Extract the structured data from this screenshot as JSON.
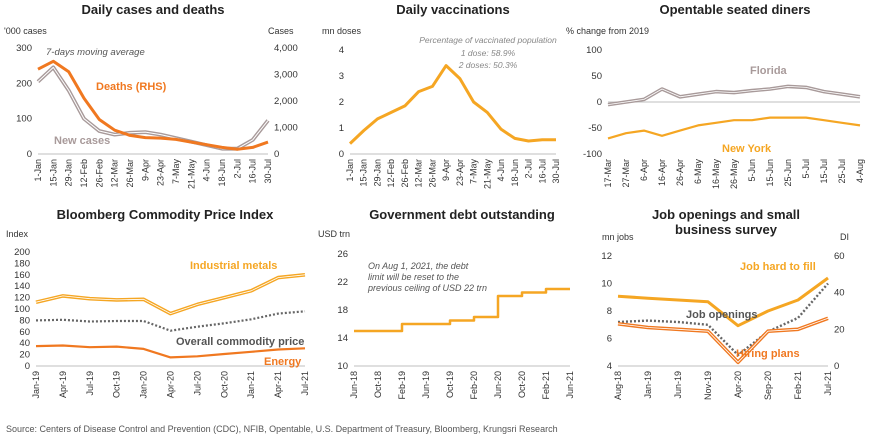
{
  "source": "Source: Centers of Disease Control and Prevention (CDC), NFIB, Opentable, U.S. Department of Treasury, Bloomberg, Krungsri Research",
  "colors": {
    "orange": "#F07820",
    "gray": "#A89A9A",
    "darkgray": "#666666",
    "gold": "#F5A623",
    "axis": "#BFBFBF",
    "text": "#333333"
  },
  "chart_data": [
    {
      "id": "cases",
      "type": "line",
      "title": "Daily cases and deaths",
      "ylabel": "'000 cases",
      "y2label": "Cases",
      "ylim": [
        0,
        300
      ],
      "y2lim": [
        0,
        4000
      ],
      "yticks": [
        "0",
        "100",
        "200",
        "300"
      ],
      "y2ticks": [
        "0",
        "1,000",
        "2,000",
        "3,000",
        "4,000"
      ],
      "categories": [
        "1-Jan",
        "15-Jan",
        "29-Jan",
        "12-Feb",
        "26-Feb",
        "12-Mar",
        "26-Mar",
        "9-Apr",
        "23-Apr",
        "7-May",
        "21-May",
        "4-Jun",
        "18-Jun",
        "2-Jul",
        "16-Jul",
        "30-Jul"
      ],
      "annotations": [
        "7-days moving average",
        "Deaths (RHS)",
        "New cases"
      ],
      "series": [
        {
          "name": "New cases",
          "axis": "left",
          "values": [
            205,
            245,
            180,
            100,
            65,
            55,
            60,
            62,
            55,
            45,
            35,
            25,
            15,
            15,
            40,
            95
          ]
        },
        {
          "name": "Deaths (RHS)",
          "axis": "right",
          "values": [
            3200,
            3500,
            3100,
            2100,
            1300,
            900,
            700,
            620,
            600,
            550,
            450,
            350,
            250,
            180,
            250,
            450
          ]
        }
      ]
    },
    {
      "id": "vacc",
      "type": "line",
      "title": "Daily vaccinations",
      "ylabel": "mn doses",
      "ylim": [
        0,
        4
      ],
      "yticks": [
        "0",
        "1",
        "2",
        "3",
        "4"
      ],
      "categories": [
        "1-Jan",
        "15-Jan",
        "29-Jan",
        "12-Feb",
        "26-Feb",
        "12-Mar",
        "26-Mar",
        "9-Apr",
        "23-Apr",
        "7-May",
        "21-May",
        "4-Jun",
        "18-Jun",
        "2-Jul",
        "16-Jul",
        "30-Jul"
      ],
      "annotations": [
        "Percentage of vaccinated population",
        "1 dose: 58.9%",
        "2 doses: 50.3%"
      ],
      "series": [
        {
          "name": "",
          "values": [
            0.4,
            0.9,
            1.35,
            1.6,
            1.85,
            2.4,
            2.6,
            3.4,
            2.9,
            2.0,
            1.6,
            0.95,
            0.6,
            0.5,
            0.55,
            0.55
          ]
        }
      ]
    },
    {
      "id": "opentable",
      "type": "line",
      "title": "Opentable seated diners",
      "ylabel": "% change from 2019",
      "ylim": [
        -100,
        100
      ],
      "yticks": [
        "-100",
        "-50",
        "0",
        "50",
        "100"
      ],
      "categories": [
        "17-Mar",
        "27-Mar",
        "6-Apr",
        "16-Apr",
        "26-Apr",
        "6-May",
        "16-May",
        "26-May",
        "5-Jun",
        "15-Jun",
        "25-Jun",
        "5-Jul",
        "15-Jul",
        "25-Jul",
        "4-Aug"
      ],
      "annotations": [
        "Florida",
        "New York"
      ],
      "series": [
        {
          "name": "Florida",
          "values": [
            -5,
            0,
            5,
            25,
            10,
            15,
            20,
            18,
            22,
            25,
            30,
            28,
            20,
            15,
            10
          ]
        },
        {
          "name": "New York",
          "values": [
            -70,
            -60,
            -55,
            -65,
            -55,
            -45,
            -40,
            -35,
            -35,
            -30,
            -30,
            -30,
            -35,
            -40,
            -45
          ]
        }
      ]
    },
    {
      "id": "commodity",
      "type": "line",
      "title": "Bloomberg Commodity Price Index",
      "ylabel": "Index",
      "ylim": [
        0,
        200
      ],
      "yticks": [
        "0",
        "20",
        "40",
        "60",
        "80",
        "100",
        "120",
        "140",
        "160",
        "180",
        "200"
      ],
      "categories": [
        "Jan-19",
        "Apr-19",
        "Jul-19",
        "Oct-19",
        "Jan-20",
        "Apr-20",
        "Jul-20",
        "Oct-20",
        "Jan-21",
        "Apr-21",
        "Jul-21"
      ],
      "annotations": [
        "Industrial metals",
        "Overall commodity price",
        "Energy"
      ],
      "series": [
        {
          "name": "Industrial metals",
          "values": [
            112,
            123,
            118,
            116,
            117,
            92,
            108,
            120,
            132,
            155,
            160
          ]
        },
        {
          "name": "Overall commodity price",
          "values": [
            80,
            81,
            78,
            79,
            79,
            62,
            69,
            75,
            82,
            92,
            96
          ]
        },
        {
          "name": "Energy",
          "values": [
            35,
            36,
            33,
            34,
            30,
            15,
            17,
            21,
            25,
            29,
            31
          ]
        }
      ]
    },
    {
      "id": "debt",
      "type": "line",
      "title": "Government debt outstanding",
      "ylabel": "USD trn",
      "ylim": [
        10,
        26
      ],
      "yticks": [
        "10",
        "14",
        "18",
        "22",
        "26"
      ],
      "categories": [
        "Jun-18",
        "Oct-18",
        "Feb-19",
        "Jun-19",
        "Oct-19",
        "Feb-20",
        "Jun-20",
        "Oct-20",
        "Feb-21",
        "Jun-21"
      ],
      "annotations": [
        "On Aug 1, 2021, the debt",
        "limit will be reset to the",
        "previous ceiling of USD 22 trn"
      ],
      "series": [
        {
          "name": "",
          "values": [
            15,
            15,
            16,
            16,
            16.5,
            17,
            20,
            20.5,
            21,
            21
          ]
        }
      ]
    },
    {
      "id": "jobs",
      "type": "line",
      "title": "Job openings and small",
      "title2": "business survey",
      "ylabel": "mn jobs",
      "y2label": "DI",
      "ylim": [
        4,
        12
      ],
      "y2lim": [
        0,
        60
      ],
      "yticks": [
        "4",
        "6",
        "8",
        "10",
        "12"
      ],
      "y2ticks": [
        "0",
        "20",
        "40",
        "60"
      ],
      "categories": [
        "Aug-18",
        "Jan-19",
        "Jun-19",
        "Nov-19",
        "Apr-20",
        "Sep-20",
        "Feb-21",
        "Jul-21"
      ],
      "annotations": [
        "Job hard to fill",
        "Job openings",
        "Hiring plans"
      ],
      "series": [
        {
          "name": "Job hard to fill",
          "axis": "right",
          "values": [
            38,
            37,
            36,
            35,
            22,
            30,
            36,
            48
          ]
        },
        {
          "name": "Job openings",
          "axis": "left",
          "values": [
            7.2,
            7.3,
            7.2,
            7.0,
            4.8,
            6.5,
            7.5,
            10.0
          ]
        },
        {
          "name": "Hiring plans",
          "axis": "right",
          "values": [
            23,
            21,
            20,
            19,
            2,
            19,
            20,
            26
          ]
        }
      ]
    }
  ]
}
